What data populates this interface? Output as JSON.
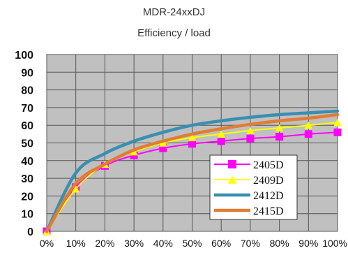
{
  "chart_data": {
    "type": "line",
    "title": "MDR-24xxDJ",
    "subtitle": "Efficiency / load",
    "xlabel": "",
    "ylabel": "",
    "categories": [
      "0%",
      "10%",
      "20%",
      "30%",
      "40%",
      "50%",
      "60%",
      "70%",
      "80%",
      "90%",
      "100%"
    ],
    "yticks": [
      "0",
      "10",
      "20",
      "30",
      "40",
      "50",
      "60",
      "70",
      "80",
      "90",
      "100"
    ],
    "ylim": [
      0,
      100
    ],
    "grid": true,
    "legend_position": "bottom-right",
    "plot_background": "#c0c0c0",
    "series": [
      {
        "name": "2405D",
        "color": "#ff00ff",
        "marker": "square",
        "values": [
          0,
          25,
          37,
          43,
          47,
          49.5,
          51,
          52.5,
          53.5,
          55,
          56
        ]
      },
      {
        "name": "2409D",
        "color": "#ffff00",
        "marker": "triangle",
        "values": [
          0,
          24,
          38,
          45,
          50,
          53,
          55,
          57,
          58.5,
          60,
          61.5
        ]
      },
      {
        "name": "2412D",
        "color": "#3a8fb0",
        "marker": "none",
        "values": [
          0,
          33,
          44,
          51,
          56,
          60,
          62.5,
          64.5,
          66,
          67,
          68
        ]
      },
      {
        "name": "2415D",
        "color": "#e07d35",
        "marker": "none",
        "values": [
          0,
          27,
          38,
          46,
          51,
          55,
          58,
          60.5,
          62.5,
          64,
          66
        ]
      }
    ]
  }
}
